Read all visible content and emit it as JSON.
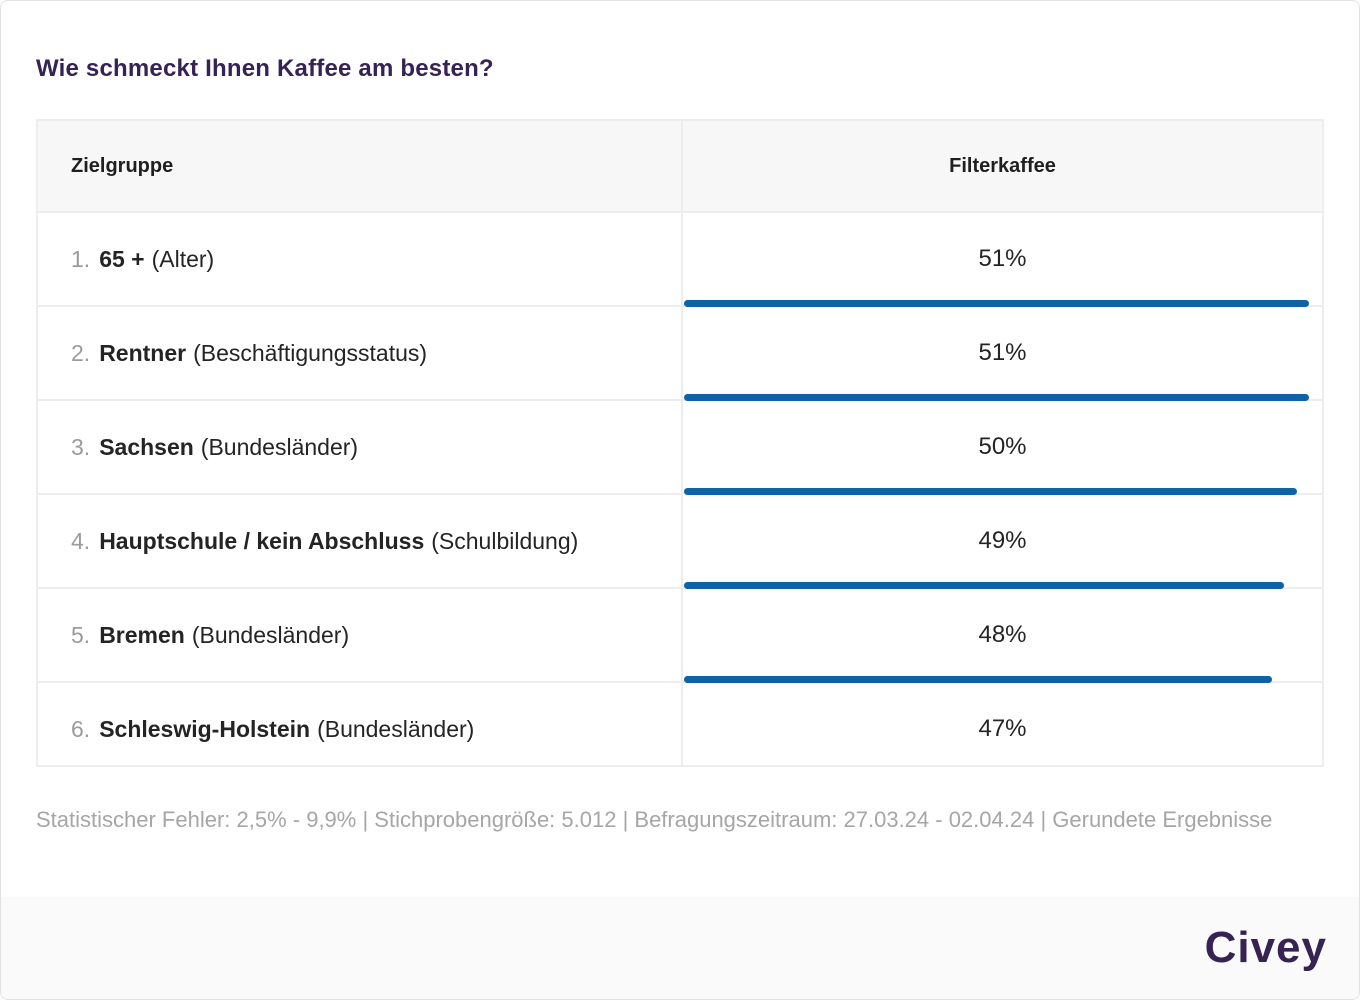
{
  "title": "Wie schmeckt Ihnen Kaffee am besten?",
  "table": {
    "columns": [
      "Zielgruppe",
      "Filterkaffee"
    ],
    "rows": [
      {
        "rank": "1.",
        "name": "65 +",
        "category": "(Alter)",
        "value": 51,
        "value_label": "51%"
      },
      {
        "rank": "2.",
        "name": "Rentner",
        "category": "(Beschäftigungsstatus)",
        "value": 51,
        "value_label": "51%"
      },
      {
        "rank": "3.",
        "name": "Sachsen",
        "category": "(Bundesländer)",
        "value": 50,
        "value_label": "50%"
      },
      {
        "rank": "4.",
        "name": "Hauptschule / kein Abschluss",
        "category": "(Schulbildung)",
        "value": 49,
        "value_label": "49%"
      },
      {
        "rank": "5.",
        "name": "Bremen",
        "category": "(Bundesländer)",
        "value": 48,
        "value_label": "48%"
      },
      {
        "rank": "6.",
        "name": "Schleswig-Holstein",
        "category": "(Bundesländer)",
        "value": 47,
        "value_label": "47%"
      }
    ]
  },
  "footer": {
    "stats": "Statistischer Fehler: 2,5% - 9,9% | Stichprobengröße: 5.012 | Befragungszeitraum: 27.03.24 - 02.04.24 | Gerundete Ergebnisse",
    "brand": "Civey"
  },
  "colors": {
    "bar_blue": "#0e63a8",
    "brand_purple": "#362353",
    "rank_gray": "#9b9b9b",
    "footer_gray": "#a6a6a6",
    "header_bg": "#f7f7f7",
    "strip_bg": "#fafafa",
    "border_gray": "#ededed"
  },
  "chart_data": {
    "type": "bar",
    "title": "Wie schmeckt Ihnen Kaffee am besten?",
    "categories": [
      "65 + (Alter)",
      "Rentner (Beschäftigungsstatus)",
      "Sachsen (Bundesländer)",
      "Hauptschule / kein Abschluss (Schulbildung)",
      "Bremen (Bundesländer)",
      "Schleswig-Holstein (Bundesländer)"
    ],
    "series": [
      {
        "name": "Filterkaffee",
        "values": [
          51,
          51,
          50,
          49,
          48,
          47
        ]
      }
    ],
    "value_format": "percent",
    "bar_scale_max": 51,
    "orientation": "horizontal",
    "legend_position": "none",
    "notes": "Bars drawn relative to max value (51% = full width); last row clipped at table bottom"
  }
}
